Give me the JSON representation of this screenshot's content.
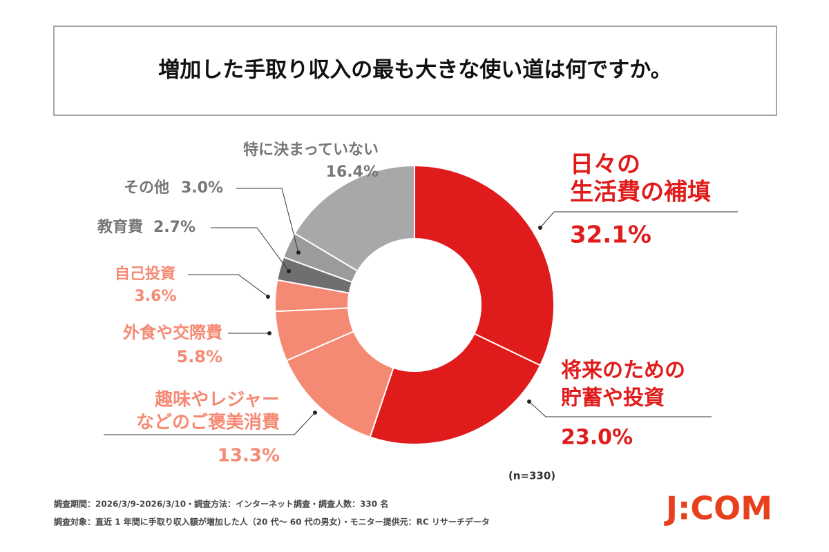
{
  "chart_data": {
    "type": "donut",
    "title": "増加した手取り収入の最も大きな使い道は何ですか。",
    "categories": [
      [
        "日々の",
        "生活費の補填"
      ],
      [
        "将来のための",
        "貯蓄や投資"
      ],
      [
        "趣味やレジャー",
        "などのご褒美消費"
      ],
      [
        "外食や交際費"
      ],
      [
        "自己投資"
      ],
      [
        "教育費"
      ],
      [
        "その他"
      ],
      [
        "特に決まっていない"
      ]
    ],
    "values": [
      32.1,
      23.0,
      13.3,
      5.8,
      3.6,
      2.7,
      3.0,
      16.4
    ],
    "value_labels": [
      "32.1%",
      "23.0%",
      "13.3%",
      "5.8%",
      "3.6%",
      "2.7%",
      "3.0%",
      "16.4%"
    ],
    "colors": [
      "#e01b1b",
      "#e01b1b",
      "#f58a74",
      "#f58a74",
      "#f58a74",
      "#6f6e70",
      "#9c9a9d",
      "#a9a7aa"
    ],
    "label_colors": [
      "#e01b1b",
      "#e01b1b",
      "#f58a74",
      "#f58a74",
      "#f58a74",
      "#777577",
      "#777577",
      "#777577"
    ],
    "sample_note": "(n=330)",
    "footnotes": [
      "調査期間：2026/3/9-2026/3/10・調査方法：インターネット調査・調査人数：330 名",
      "調査対象：直近 1 年間に手取り収入額が増加した人（20 代～ 60 代の男女）・モニター提供元：RC リサーチデータ"
    ],
    "logo": "J:COM"
  }
}
